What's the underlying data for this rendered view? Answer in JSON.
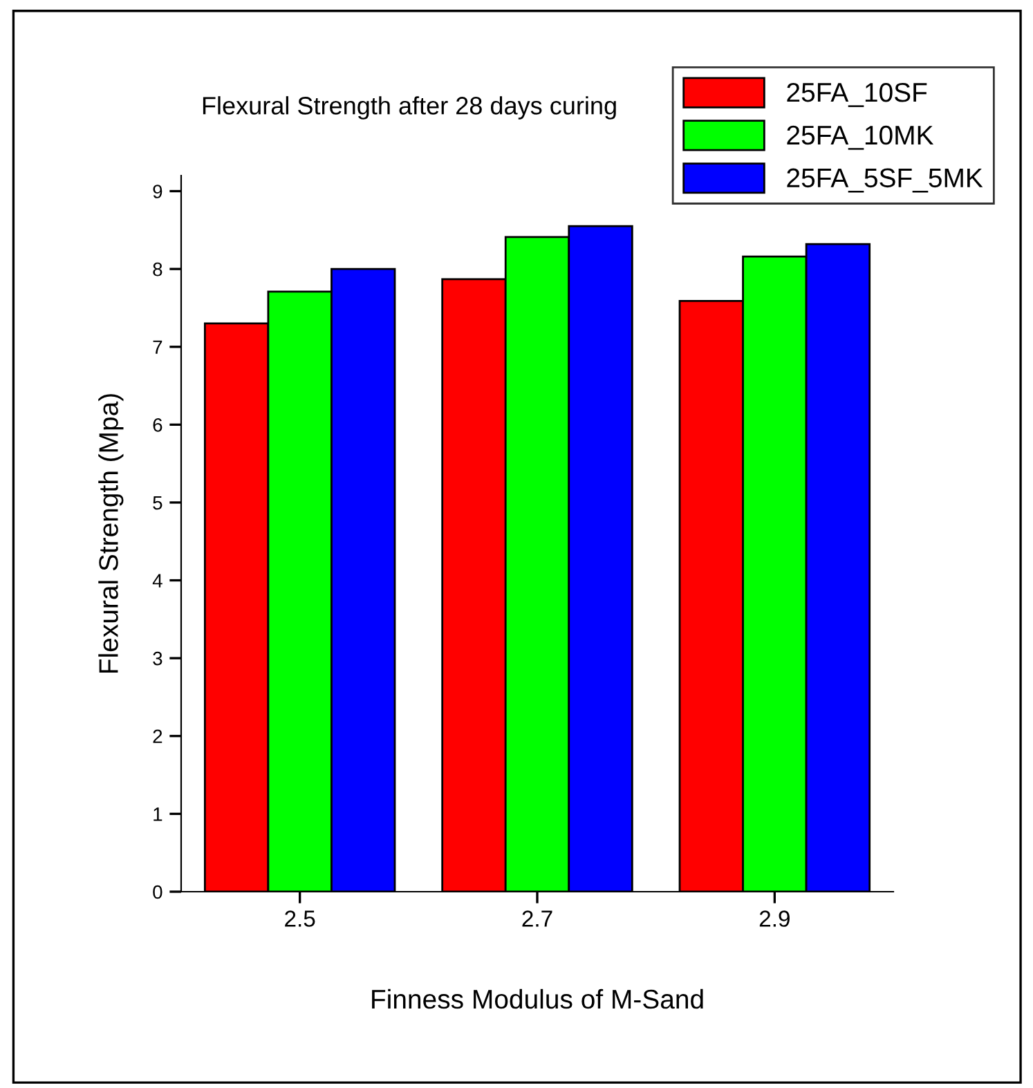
{
  "chart_data": {
    "type": "bar",
    "title": "Flexural Strength after 28 days curing",
    "xlabel": "Finness Modulus of M-Sand",
    "ylabel": "Flexural Strength (Mpa)",
    "categories": [
      "2.5",
      "2.7",
      "2.9"
    ],
    "series": [
      {
        "name": "25FA_10SF",
        "color": "#ff0000",
        "values": [
          7.3,
          7.87,
          7.59
        ]
      },
      {
        "name": "25FA_10MK",
        "color": "#00ff00",
        "values": [
          7.71,
          8.41,
          8.16
        ]
      },
      {
        "name": "25FA_5SF_5MK",
        "color": "#0000ff",
        "values": [
          8.0,
          8.55,
          8.32
        ]
      }
    ],
    "ylim": [
      0,
      9.2
    ],
    "yticks": [
      0,
      1,
      2,
      3,
      4,
      5,
      6,
      7,
      8,
      9
    ],
    "grid": false,
    "legend": "top right"
  }
}
